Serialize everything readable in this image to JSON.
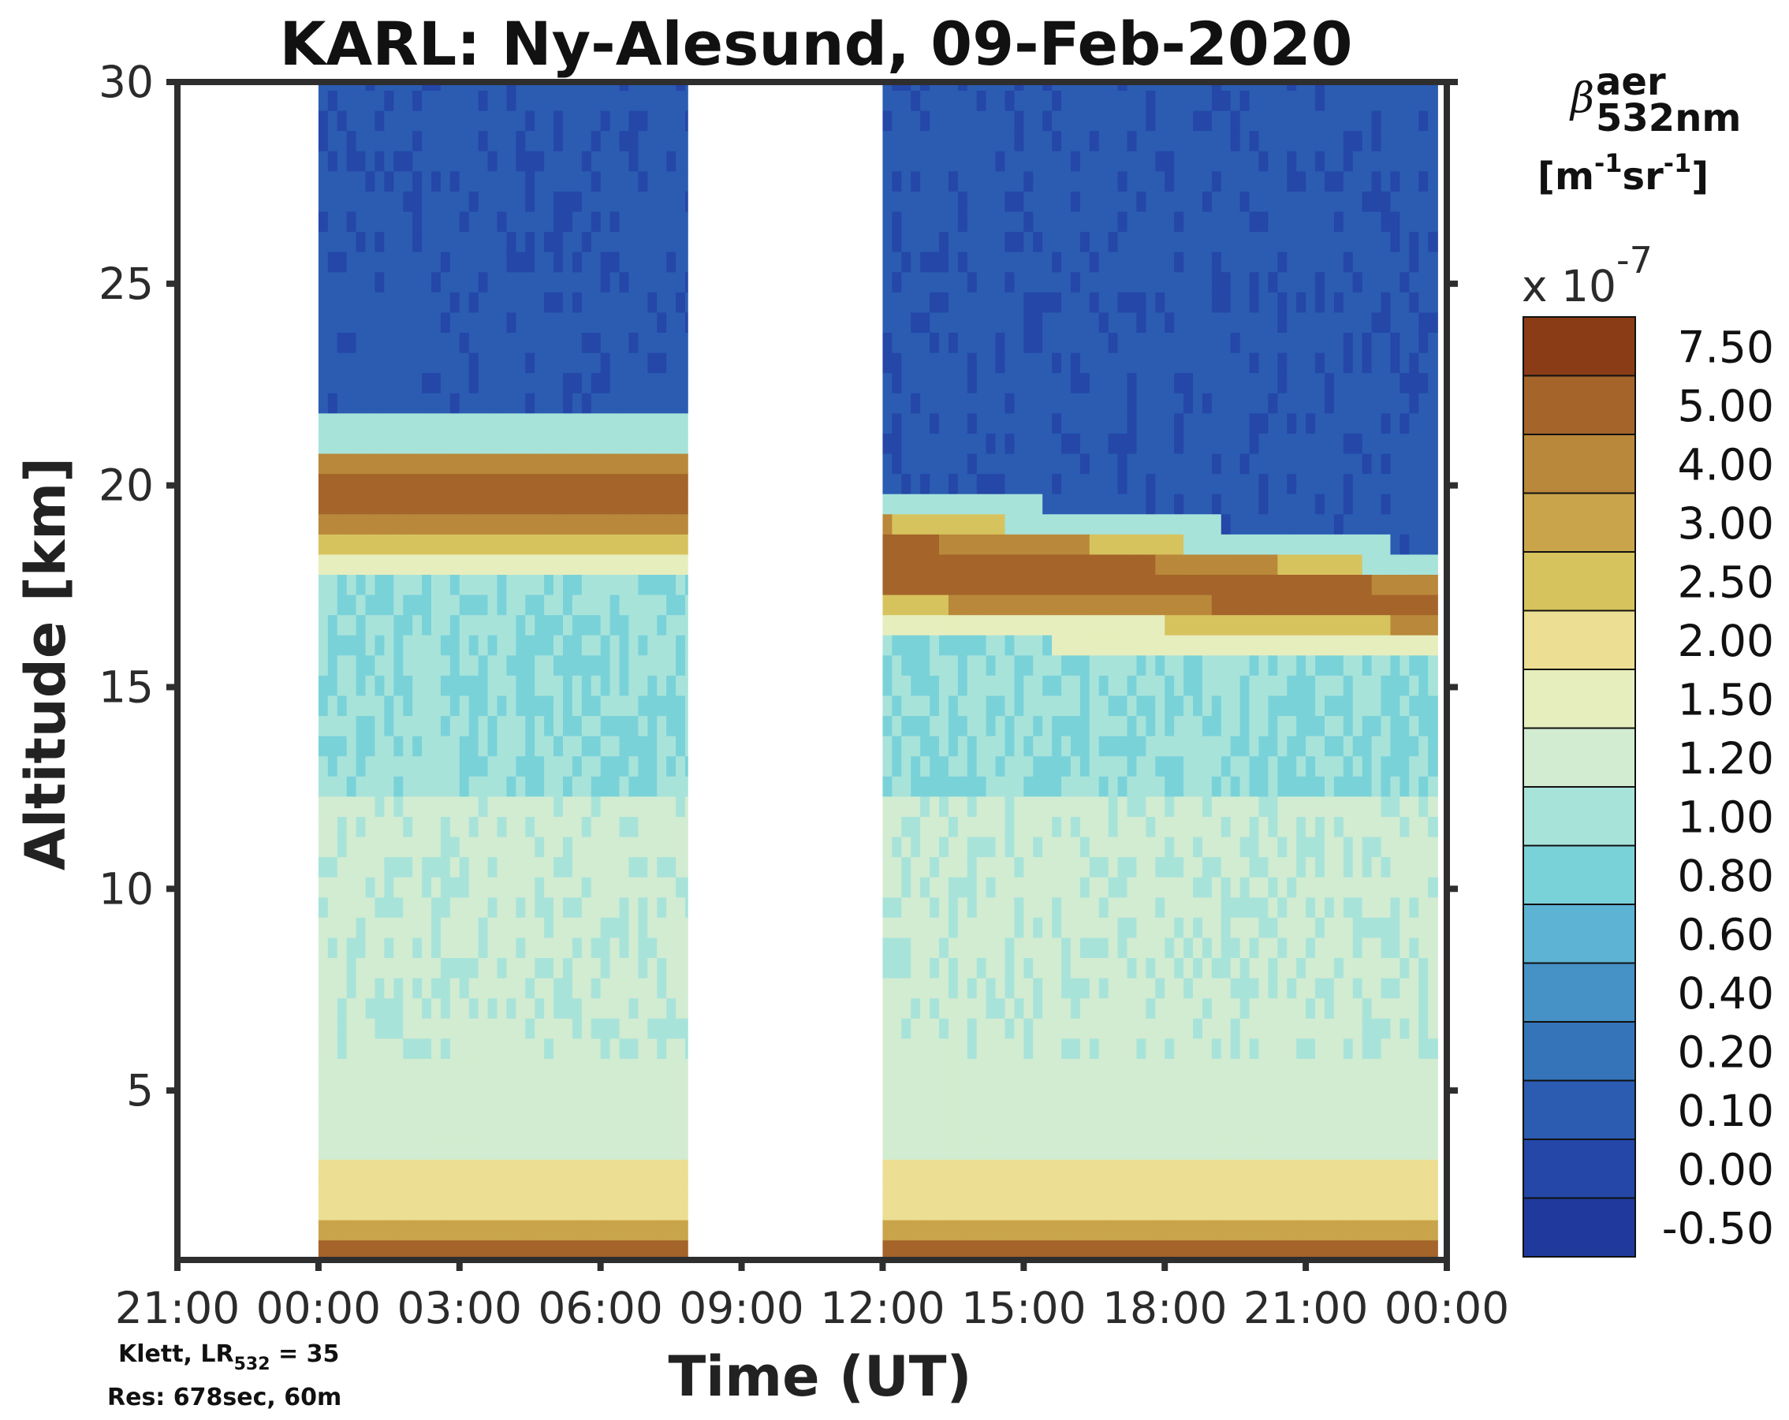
{
  "chart_data": {
    "type": "heatmap",
    "title": "KARL: Ny-Alesund, 09-Feb-2020",
    "xlabel": "Time (UT)",
    "ylabel": "Altitude [km]",
    "x_ticks": [
      "21:00",
      "00:00",
      "03:00",
      "06:00",
      "09:00",
      "12:00",
      "15:00",
      "18:00",
      "21:00",
      "00:00"
    ],
    "x_range_hours": [
      -3,
      24
    ],
    "y_ticks": [
      5,
      10,
      15,
      20,
      25,
      30
    ],
    "ylim": [
      0.8,
      30
    ],
    "colorbar": {
      "label": {
        "symbol": "β",
        "sup": "aer",
        "sub": "532nm"
      },
      "unit": "[m-1sr-1]",
      "unit_parts": {
        "m": "[m",
        "m_exp": "-1",
        "sr": "sr",
        "sr_exp": "-1",
        "close": "]"
      },
      "multiplier": "x 10",
      "multiplier_exp": "-7",
      "levels": [
        "-0.50",
        "0.00",
        "0.10",
        "0.20",
        "0.40",
        "0.60",
        "0.80",
        "1.00",
        "1.20",
        "1.50",
        "2.00",
        "2.50",
        "3.00",
        "4.00",
        "5.00",
        "7.50"
      ],
      "colors": [
        "#1f3a9c",
        "#2447a8",
        "#2b5cb2",
        "#3574b9",
        "#4691c6",
        "#5cb3d4",
        "#7ad2d9",
        "#a8e3da",
        "#d2ecd1",
        "#e7eebd",
        "#ecde92",
        "#d7c35e",
        "#c9a44a",
        "#b9883a",
        "#a4642a",
        "#8a3c17"
      ]
    },
    "segments": [
      {
        "start_h": 0.0,
        "end_h": 7.85
      },
      {
        "start_h": 12.0,
        "end_h": 23.8
      }
    ],
    "aerosol_layer": {
      "segment1": {
        "top_km": 21.0,
        "bottom_km": 18.5
      },
      "segment2": {
        "top_km_start": 19.4,
        "top_km_end": 17.8,
        "bottom_km_start": 16.8,
        "bottom_km_end": 16.3
      }
    },
    "clear_columns_h": [
      13.8,
      15.0
    ],
    "annotations": {
      "method_prefix": "Klett, LR",
      "method_sub": "532",
      "method_suffix": " = 35",
      "resolution": "Res: 678sec, 60m"
    }
  }
}
